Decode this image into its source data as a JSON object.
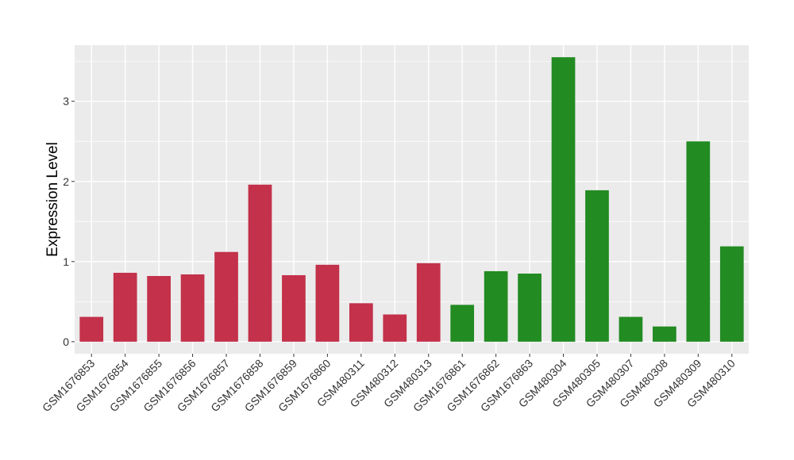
{
  "chart_data": {
    "type": "bar",
    "title": "",
    "xlabel": "",
    "ylabel": "Expression Level",
    "ylim": [
      -0.15,
      3.7
    ],
    "yticks": [
      0,
      1,
      2,
      3
    ],
    "grid": true,
    "legend": "none",
    "colors": {
      "group_a": "#C3314A",
      "group_b": "#228B22",
      "panel_background": "#EBEBEB",
      "gridline": "#FFFFFF"
    },
    "categories": [
      "GSM1676853",
      "GSM1676854",
      "GSM1676855",
      "GSM1676856",
      "GSM1676857",
      "GSM1676858",
      "GSM1676859",
      "GSM1676860",
      "GSM480311",
      "GSM480312",
      "GSM480313",
      "GSM1676861",
      "GSM1676862",
      "GSM1676863",
      "GSM480304",
      "GSM480305",
      "GSM480307",
      "GSM480308",
      "GSM480309",
      "GSM480310"
    ],
    "values": [
      0.31,
      0.86,
      0.82,
      0.84,
      1.12,
      1.96,
      0.83,
      0.96,
      0.48,
      0.34,
      0.98,
      0.46,
      0.88,
      0.85,
      3.55,
      1.89,
      0.31,
      0.19,
      2.5,
      1.19
    ],
    "groups": [
      "group_a",
      "group_a",
      "group_a",
      "group_a",
      "group_a",
      "group_a",
      "group_a",
      "group_a",
      "group_a",
      "group_a",
      "group_a",
      "group_b",
      "group_b",
      "group_b",
      "group_b",
      "group_b",
      "group_b",
      "group_b",
      "group_b",
      "group_b"
    ]
  }
}
